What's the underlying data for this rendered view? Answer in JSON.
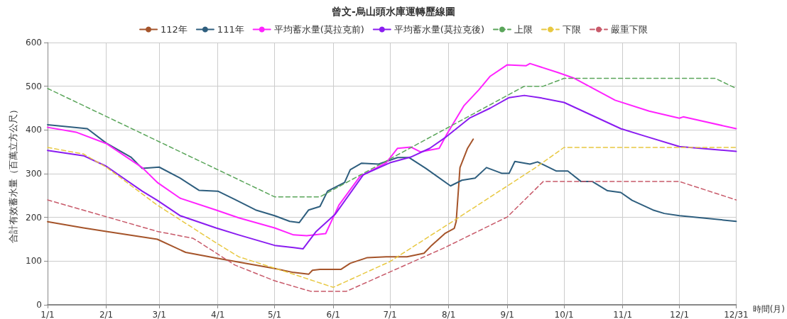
{
  "chart_data": {
    "type": "line",
    "title": "曾文-烏山頭水庫運轉歷線圖",
    "xlabel": "時間(月)",
    "ylabel": "合計有效蓄水量（百萬立方公尺）",
    "xlim": [
      "--01-01",
      "--12-31"
    ],
    "xticks": [
      {
        "value": "--01-01",
        "label": "1/1"
      },
      {
        "value": "--02-01",
        "label": "2/1"
      },
      {
        "value": "--03-01",
        "label": "3/1"
      },
      {
        "value": "--04-01",
        "label": "4/1"
      },
      {
        "value": "--05-01",
        "label": "5/1"
      },
      {
        "value": "--06-01",
        "label": "6/1"
      },
      {
        "value": "--07-01",
        "label": "7/1"
      },
      {
        "value": "--08-01",
        "label": "8/1"
      },
      {
        "value": "--09-01",
        "label": "9/1"
      },
      {
        "value": "--10-01",
        "label": "10/1"
      },
      {
        "value": "--11-01",
        "label": "11/1"
      },
      {
        "value": "--12-01",
        "label": "12/1"
      },
      {
        "value": "--12-31",
        "label": "12/31"
      }
    ],
    "ylim": [
      0,
      600
    ],
    "yticks": [
      0,
      100,
      200,
      300,
      400,
      500,
      600
    ],
    "grid": true,
    "legend": "top",
    "marker": "none",
    "series": [
      {
        "name": "112年",
        "color": "#a5542a",
        "line_style": "solid",
        "x": [
          "--01-01",
          "--01-20",
          "--02-01",
          "--02-28",
          "--03-15",
          "--03-31",
          "--05-01",
          "--05-11",
          "--05-19",
          "--05-21",
          "--05-25",
          "--06-05",
          "--06-10",
          "--06-19",
          "--06-29",
          "--07-10",
          "--07-19",
          "--07-23",
          "--07-30",
          "--08-04",
          "--08-05",
          "--08-07",
          "--08-11",
          "--08-14"
        ],
        "values": [
          190,
          176,
          168,
          150,
          120,
          107,
          83,
          74,
          70,
          79,
          81,
          81,
          95,
          108,
          110,
          110,
          118,
          136,
          163,
          175,
          191,
          314,
          358,
          379
        ]
      },
      {
        "name": "111年",
        "color": "#2e5e7e",
        "line_style": "solid",
        "x": [
          "--01-01",
          "--01-22",
          "--02-01",
          "--02-14",
          "--02-20",
          "--03-01",
          "--03-12",
          "--03-22",
          "--04-01",
          "--04-10",
          "--04-21",
          "--05-01",
          "--05-09",
          "--05-14",
          "--05-19",
          "--05-25",
          "--05-29",
          "--06-07",
          "--06-10",
          "--06-16",
          "--06-25",
          "--07-05",
          "--07-11",
          "--07-20",
          "--08-02",
          "--08-08",
          "--08-15",
          "--08-21",
          "--08-29",
          "--09-02",
          "--09-05",
          "--09-13",
          "--09-17",
          "--09-27",
          "--10-03",
          "--10-10",
          "--10-16",
          "--10-24",
          "--10-31",
          "--11-06",
          "--11-17",
          "--11-23",
          "--12-01",
          "--12-31"
        ],
        "values": [
          412,
          403,
          370,
          338,
          312,
          315,
          290,
          262,
          260,
          241,
          217,
          204,
          191,
          188,
          217,
          225,
          260,
          280,
          309,
          324,
          322,
          337,
          337,
          312,
          272,
          285,
          290,
          314,
          301,
          301,
          328,
          322,
          327,
          306,
          306,
          282,
          282,
          261,
          257,
          239,
          217,
          209,
          204,
          191
        ]
      },
      {
        "name": "平均蓄水量(莫拉克前)",
        "color": "#ff22ff",
        "line_style": "solid",
        "x": [
          "--01-01",
          "--01-16",
          "--02-01",
          "--02-20",
          "--02-28",
          "--03-12",
          "--03-31",
          "--04-12",
          "--05-01",
          "--05-11",
          "--05-18",
          "--05-28",
          "--06-04",
          "--06-15",
          "--06-29",
          "--07-05",
          "--07-12",
          "--07-17",
          "--07-27",
          "--07-31",
          "--08-09",
          "--08-17",
          "--08-23",
          "--09-01",
          "--09-11",
          "--09-13",
          "--09-28",
          "--10-06",
          "--10-28",
          "--11-15",
          "--12-01",
          "--12-03",
          "--12-31"
        ],
        "values": [
          406,
          395,
          369,
          314,
          280,
          244,
          217,
          199,
          176,
          160,
          158,
          163,
          228,
          293,
          325,
          358,
          361,
          350,
          358,
          390,
          455,
          492,
          523,
          549,
          547,
          552,
          531,
          519,
          468,
          443,
          427,
          430,
          403
        ]
      },
      {
        "name": "平均蓄水量(莫拉克後)",
        "color": "#8a1cf0",
        "line_style": "solid",
        "x": [
          "--01-01",
          "--01-20",
          "--02-01",
          "--02-20",
          "--02-28",
          "--03-12",
          "--03-31",
          "--04-12",
          "--05-01",
          "--05-11",
          "--05-16",
          "--05-23",
          "--06-02",
          "--06-17",
          "--07-01",
          "--07-12",
          "--07-22",
          "--07-30",
          "--08-12",
          "--08-23",
          "--09-02",
          "--09-10",
          "--09-18",
          "--10-01",
          "--10-15",
          "--10-31",
          "--11-12",
          "--12-01",
          "--12-31"
        ],
        "values": [
          353,
          341,
          317,
          260,
          239,
          204,
          176,
          160,
          136,
          131,
          128,
          168,
          207,
          298,
          325,
          338,
          358,
          382,
          427,
          450,
          474,
          479,
          474,
          463,
          435,
          403,
          387,
          362,
          351
        ]
      },
      {
        "name": "上限",
        "color": "#5aa55a",
        "line_style": "dashed",
        "x": [
          "--01-01",
          "--05-01",
          "--05-25",
          "--09-10",
          "--09-20",
          "--10-01",
          "--12-20",
          "--12-31"
        ],
        "values": [
          495,
          247,
          247,
          500,
          500,
          518,
          518,
          495
        ]
      },
      {
        "name": "下限",
        "color": "#e8c840",
        "line_style": "dashed",
        "x": [
          "--01-01",
          "--01-20",
          "--02-01",
          "--02-28",
          "--03-31",
          "--04-12",
          "--05-11",
          "--06-01",
          "--07-01",
          "--08-05",
          "--09-16",
          "--10-01",
          "--12-31"
        ],
        "values": [
          360,
          345,
          315,
          228,
          142,
          110,
          70,
          40,
          99,
          196,
          314,
          360,
          360
        ]
      },
      {
        "name": "嚴重下限",
        "color": "#c85a6a",
        "line_style": "dashed",
        "x": [
          "--01-01",
          "--02-28",
          "--03-19",
          "--04-10",
          "--05-01",
          "--05-20",
          "--06-08",
          "--07-30",
          "--09-01",
          "--09-20",
          "--12-01",
          "--12-31"
        ],
        "values": [
          240,
          168,
          152,
          91,
          55,
          31,
          31,
          131,
          201,
          282,
          282,
          240
        ]
      }
    ]
  }
}
